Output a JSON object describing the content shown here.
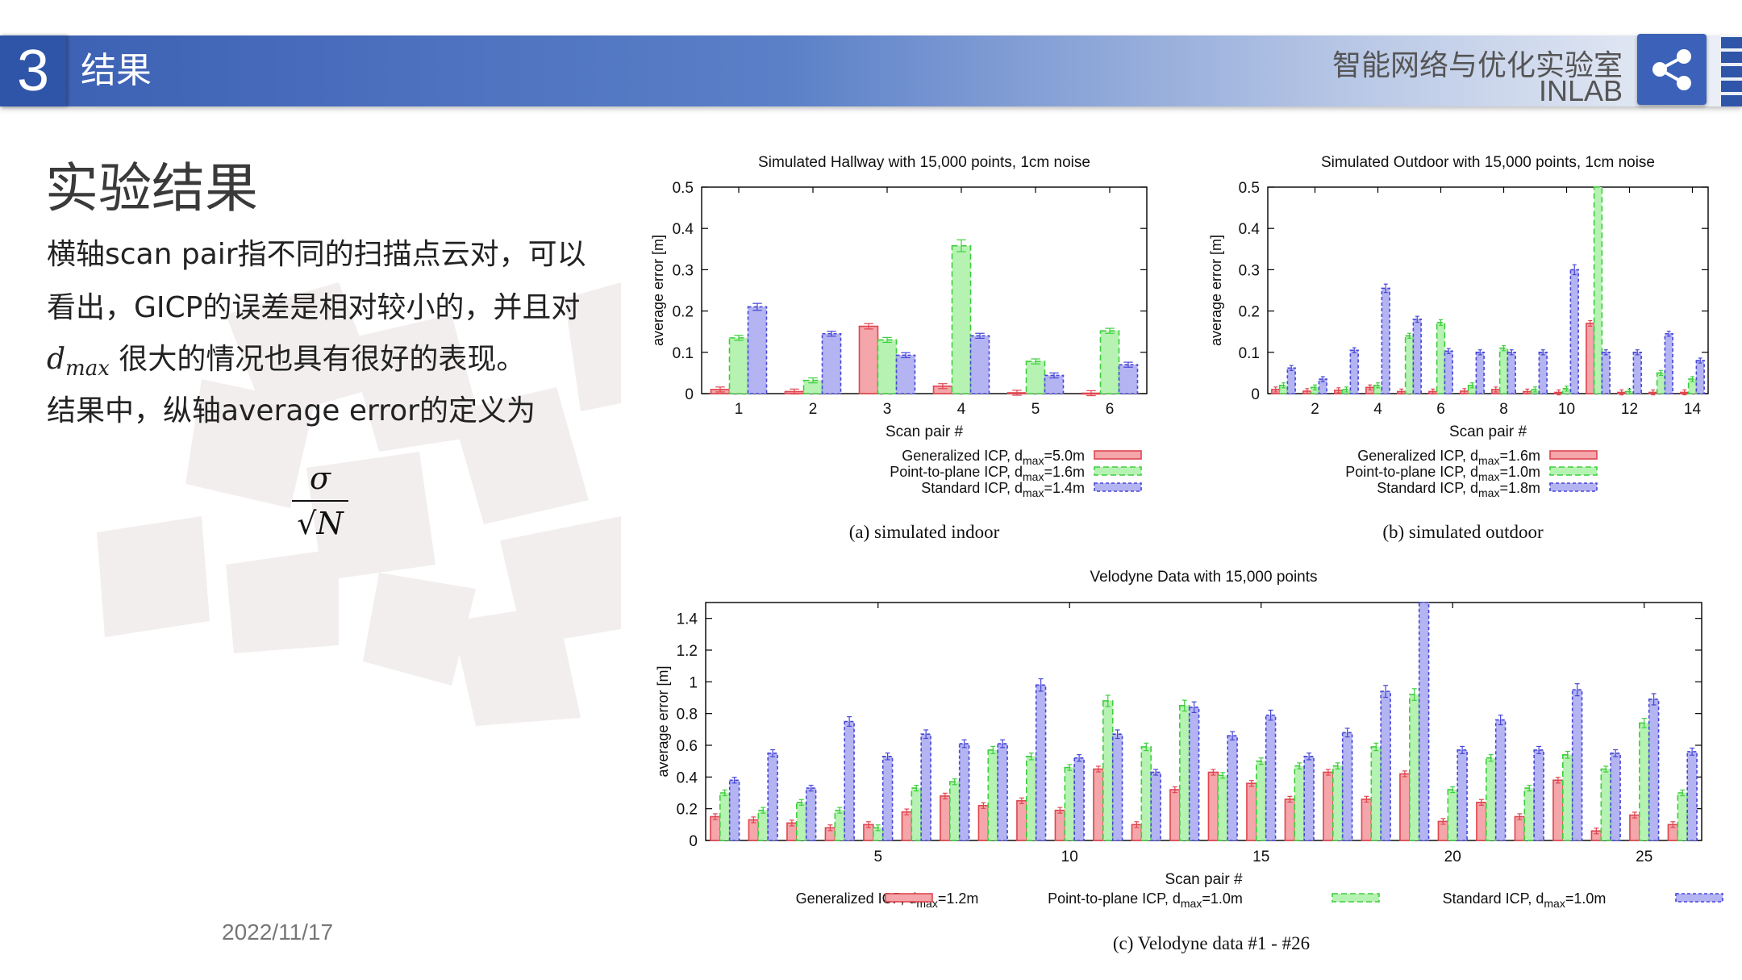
{
  "header": {
    "section_number": "3",
    "section_title": "结果",
    "lab_name_cn": "智能网络与优化实验室",
    "lab_name_en": "INLAB",
    "share_icon": "share-icon"
  },
  "content": {
    "heading": "实验结果",
    "line1": "横轴scan pair指不同的扫描点云对，可以",
    "line2": "看出，GICP的误差是相对较小的，并且对",
    "line3_symbol": "d",
    "line3_sub": "max",
    "line3_text": " 很大的情况也具有很好的表现。",
    "line4": "结果中，纵轴average error的定义为",
    "formula_num": "σ",
    "formula_den": "√N"
  },
  "footer": {
    "date": "2022/11/17"
  },
  "colors": {
    "gicp": "#e0454f",
    "gicp_fill": "#f4a6aa",
    "p2p": "#3ccf3c",
    "p2p_fill": "#b6f2b2",
    "std": "#4646d8",
    "std_fill": "#b4b4f2"
  },
  "chart_data": [
    {
      "type": "bar",
      "title": "Simulated Hallway with 15,000 points, 1cm noise",
      "xlabel": "Scan pair #",
      "ylabel": "average error [m]",
      "ylim": [
        0,
        0.5
      ],
      "yticks": [
        "0",
        "0.1",
        "0.2",
        "0.3",
        "0.4",
        "0.5"
      ],
      "categories": [
        "1",
        "2",
        "3",
        "4",
        "5",
        "6"
      ],
      "xtick_labels": [
        "1",
        "2",
        "3",
        "4",
        "5",
        "6"
      ],
      "series": [
        {
          "name": "Generalized ICP, d",
          "sub": "max",
          "suffix": "=5.0m",
          "values": [
            0.01,
            0.005,
            0.163,
            0.018,
            0.002,
            0.001
          ]
        },
        {
          "name": "Point-to-plane ICP, d",
          "sub": "max",
          "suffix": "=1.6m",
          "values": [
            0.135,
            0.032,
            0.13,
            0.358,
            0.078,
            0.152
          ]
        },
        {
          "name": "Standard ICP, d",
          "sub": "max",
          "suffix": "=1.4m",
          "values": [
            0.21,
            0.145,
            0.093,
            0.14,
            0.044,
            0.07
          ]
        }
      ],
      "caption": "(a) simulated indoor"
    },
    {
      "type": "bar",
      "title": "Simulated Outdoor with 15,000 points, 1cm noise",
      "xlabel": "Scan pair #",
      "ylabel": "average error [m]",
      "ylim": [
        0,
        0.5
      ],
      "yticks": [
        "0",
        "0.1",
        "0.2",
        "0.3",
        "0.4",
        "0.5"
      ],
      "categories": [
        "1",
        "2",
        "3",
        "4",
        "5",
        "6",
        "7",
        "8",
        "9",
        "10",
        "11",
        "12",
        "13",
        "14"
      ],
      "xtick_labels": [
        "2",
        "4",
        "6",
        "8",
        "10",
        "12",
        "14"
      ],
      "series": [
        {
          "name": "Generalized ICP, d",
          "sub": "max",
          "suffix": "=1.6m",
          "values": [
            0.01,
            0.006,
            0.008,
            0.015,
            0.005,
            0.005,
            0.006,
            0.01,
            0.005,
            0.003,
            0.17,
            0.003,
            0.003,
            0.003
          ]
        },
        {
          "name": "Point-to-plane ICP, d",
          "sub": "max",
          "suffix": "=1.0m",
          "values": [
            0.02,
            0.015,
            0.01,
            0.02,
            0.14,
            0.172,
            0.02,
            0.11,
            0.01,
            0.012,
            0.5,
            0.005,
            0.05,
            0.035
          ]
        },
        {
          "name": "Standard ICP, d",
          "sub": "max",
          "suffix": "=1.8m",
          "values": [
            0.062,
            0.035,
            0.105,
            0.255,
            0.18,
            0.103,
            0.1,
            0.1,
            0.1,
            0.3,
            0.1,
            0.1,
            0.145,
            0.08
          ]
        }
      ],
      "caption": "(b) simulated outdoor"
    },
    {
      "type": "bar",
      "title": "Velodyne Data with 15,000 points",
      "xlabel": "Scan pair #",
      "ylabel": "average error [m]",
      "ylim": [
        0,
        1.5
      ],
      "yticks": [
        "0",
        "0.2",
        "0.4",
        "0.6",
        "0.8",
        "1",
        "1.2",
        "1.4"
      ],
      "categories": [
        "1",
        "2",
        "3",
        "4",
        "5",
        "6",
        "7",
        "8",
        "9",
        "10",
        "11",
        "12",
        "13",
        "14",
        "15",
        "16",
        "17",
        "18",
        "19",
        "20",
        "21",
        "22",
        "23",
        "24",
        "25",
        "26"
      ],
      "xtick_labels": [
        "5",
        "10",
        "15",
        "20",
        "25"
      ],
      "series": [
        {
          "name": "Generalized ICP, d",
          "sub": "max",
          "suffix": "=1.2m",
          "values": [
            0.15,
            0.13,
            0.11,
            0.08,
            0.1,
            0.18,
            0.28,
            0.22,
            0.25,
            0.19,
            0.45,
            0.1,
            0.32,
            0.43,
            0.36,
            0.26,
            0.43,
            0.26,
            0.42,
            0.12,
            0.24,
            0.15,
            0.38,
            0.06,
            0.16,
            0.1
          ]
        },
        {
          "name": "Point-to-plane ICP, d",
          "sub": "max",
          "suffix": "=1.0m",
          "values": [
            0.3,
            0.19,
            0.24,
            0.19,
            0.08,
            0.33,
            0.37,
            0.57,
            0.53,
            0.46,
            0.88,
            0.59,
            0.85,
            0.41,
            0.5,
            0.47,
            0.47,
            0.59,
            0.92,
            0.32,
            0.52,
            0.33,
            0.54,
            0.45,
            0.74,
            0.3
          ]
        },
        {
          "name": "Standard ICP, d",
          "sub": "max",
          "suffix": "=1.0m",
          "values": [
            0.38,
            0.55,
            0.33,
            0.75,
            0.53,
            0.67,
            0.61,
            0.61,
            0.98,
            0.52,
            0.67,
            0.43,
            0.84,
            0.66,
            0.79,
            0.53,
            0.68,
            0.94,
            1.5,
            0.57,
            0.76,
            0.57,
            0.95,
            0.55,
            0.89,
            0.56
          ]
        }
      ],
      "caption": "(c) Velodyne data #1 - #26"
    }
  ]
}
